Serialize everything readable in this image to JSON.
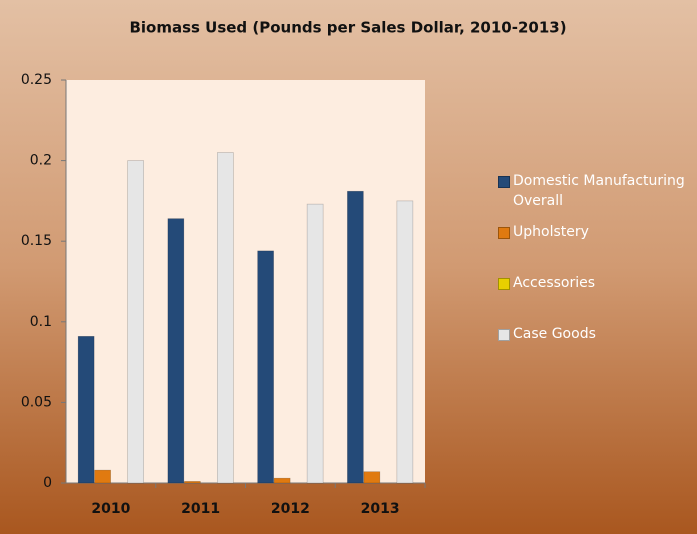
{
  "chart_data": {
    "type": "bar",
    "title": "Biomass Used (Pounds per Sales Dollar, 2010-2013)",
    "categories": [
      "2010",
      "2011",
      "2012",
      "2013"
    ],
    "series": [
      {
        "name": "Domestic Manufacturing Overall",
        "color": "#244a78",
        "values": [
          0.091,
          0.164,
          0.144,
          0.181
        ]
      },
      {
        "name": "Upholstery",
        "color": "#e07a10",
        "values": [
          0.008,
          0.001,
          0.003,
          0.007
        ]
      },
      {
        "name": "Accessories",
        "color": "#e8d000",
        "values": [
          0,
          0,
          0,
          0
        ]
      },
      {
        "name": "Case Goods",
        "color": "#e6e6e6",
        "values": [
          0.2,
          0.205,
          0.173,
          0.175
        ]
      }
    ],
    "ylim": [
      0,
      0.25
    ],
    "yticks": [
      0,
      0.05,
      0.1,
      0.15,
      0.2,
      0.25
    ],
    "grid": false,
    "legend": "right"
  }
}
